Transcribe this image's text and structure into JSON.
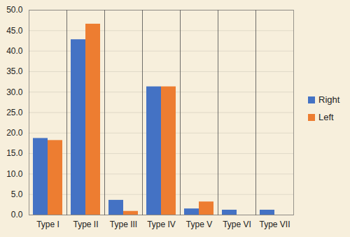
{
  "chart_data": {
    "type": "bar",
    "categories": [
      "Type I",
      "Type II",
      "Type III",
      "Type IV",
      "Type V",
      "Type VI",
      "Type VII"
    ],
    "series": [
      {
        "name": "Right",
        "color": "#4472c4",
        "values": [
          18.7,
          42.8,
          3.6,
          31.3,
          1.5,
          1.2,
          1.2
        ]
      },
      {
        "name": "Left",
        "color": "#ed7d31",
        "values": [
          18.2,
          46.6,
          0.9,
          31.3,
          3.2,
          0,
          0
        ]
      }
    ],
    "ylim": [
      0,
      50
    ],
    "yticks": [
      {
        "value": 0,
        "label": "0.0"
      },
      {
        "value": 5,
        "label": "5.0"
      },
      {
        "value": 10,
        "label": "10.0"
      },
      {
        "value": 15,
        "label": "15.0"
      },
      {
        "value": 20,
        "label": "20.0"
      },
      {
        "value": 25,
        "label": "25.0"
      },
      {
        "value": 30,
        "label": "30.0"
      },
      {
        "value": 35,
        "label": "35.0"
      },
      {
        "value": 40,
        "label": "40.0"
      },
      {
        "value": 45,
        "label": "45.0"
      },
      {
        "value": 50,
        "label": "50.0"
      }
    ],
    "grid": true,
    "legend": "right"
  }
}
